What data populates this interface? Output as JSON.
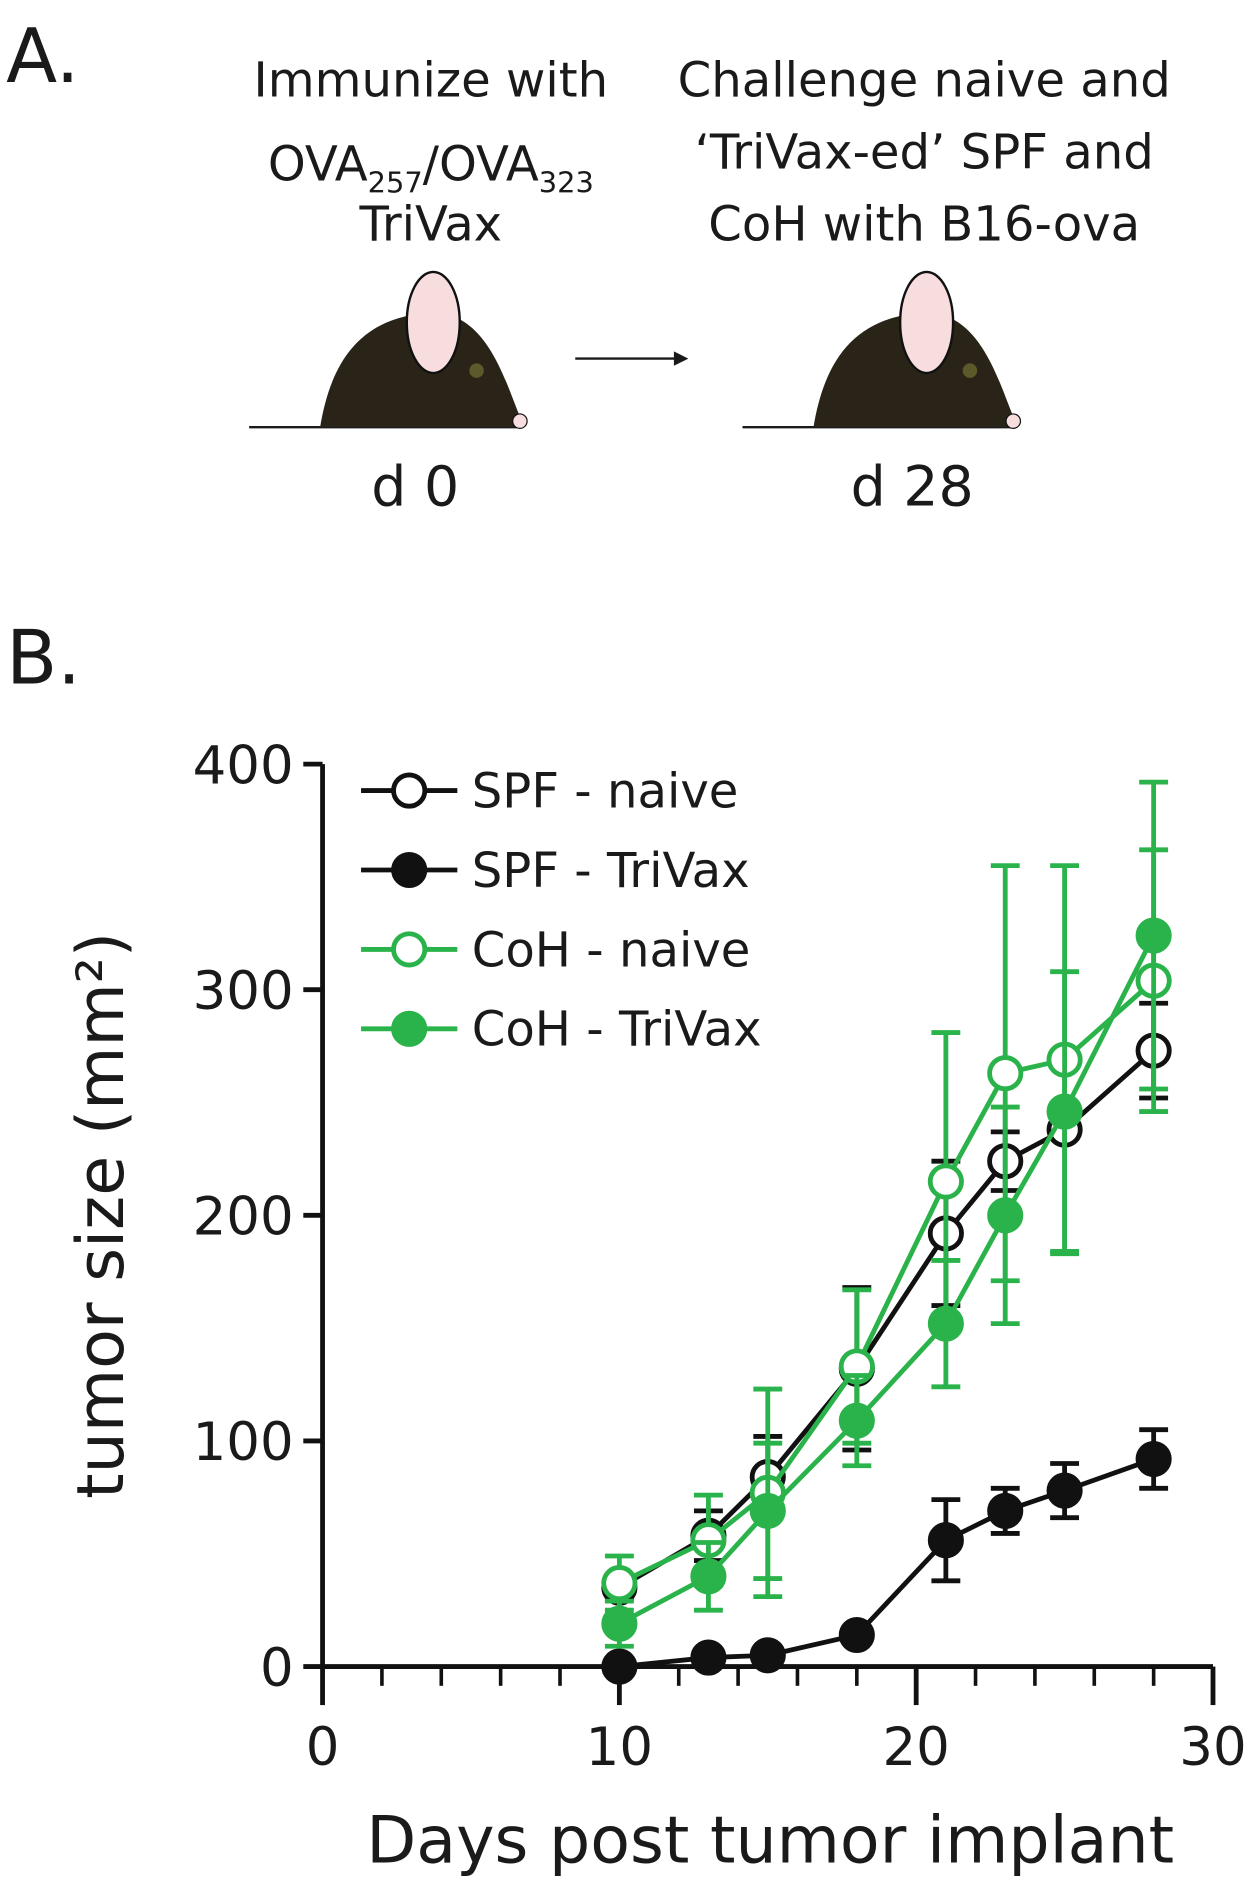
{
  "panel_a": {
    "label": "A.",
    "step1": {
      "line1": "Immunize with",
      "line2": [
        "OVA",
        "257",
        "/OVA",
        "323"
      ],
      "line3": "TriVax",
      "day": "d 0"
    },
    "step2": {
      "lines": [
        "Challenge naive and",
        "‘TriVax-ed’ SPF and",
        "CoH with B16-ova"
      ],
      "day": "d 28"
    }
  },
  "panel_b": {
    "label": "B."
  },
  "chart_data": {
    "type": "line",
    "y_label": "tumor size (mm²)",
    "x_label": "Days post tumor implant",
    "x": [
      10,
      13,
      15,
      18,
      21,
      23,
      25,
      28
    ],
    "xlim": [
      0,
      30
    ],
    "xticks": [
      0,
      10,
      20,
      30
    ],
    "xminorticks": [
      2,
      4,
      6,
      8,
      12,
      14,
      16,
      18,
      22,
      24,
      26,
      28
    ],
    "ylim": [
      0,
      400
    ],
    "yticks": [
      0,
      100,
      200,
      300,
      400
    ],
    "legend": "upper left",
    "series": [
      {
        "name": "SPF - naive",
        "color": "#111111",
        "marker": "open",
        "values": [
          35,
          58,
          84,
          132,
          192,
          224,
          238,
          273
        ],
        "errors": [
          5,
          11,
          18,
          36,
          32,
          13,
          4,
          21
        ]
      },
      {
        "name": "SPF - TriVax",
        "color": "#111111",
        "marker": "filled",
        "values": [
          0,
          4,
          5,
          14,
          56,
          69,
          78,
          92
        ],
        "errors": [
          2,
          2,
          2,
          3,
          18,
          10,
          12,
          13
        ]
      },
      {
        "name": "CoH - naive",
        "color": "#2ab34a",
        "marker": "open",
        "values": [
          37,
          56,
          77,
          133,
          215,
          263,
          269,
          304
        ],
        "errors": [
          12,
          20,
          46,
          34,
          66,
          92,
          86,
          58
        ]
      },
      {
        "name": "CoH - TriVax",
        "color": "#2ab34a",
        "marker": "filled",
        "values": [
          19,
          40,
          69,
          109,
          152,
          200,
          246,
          324
        ],
        "errors": [
          10,
          15,
          30,
          20,
          28,
          48,
          62,
          68
        ]
      }
    ]
  }
}
